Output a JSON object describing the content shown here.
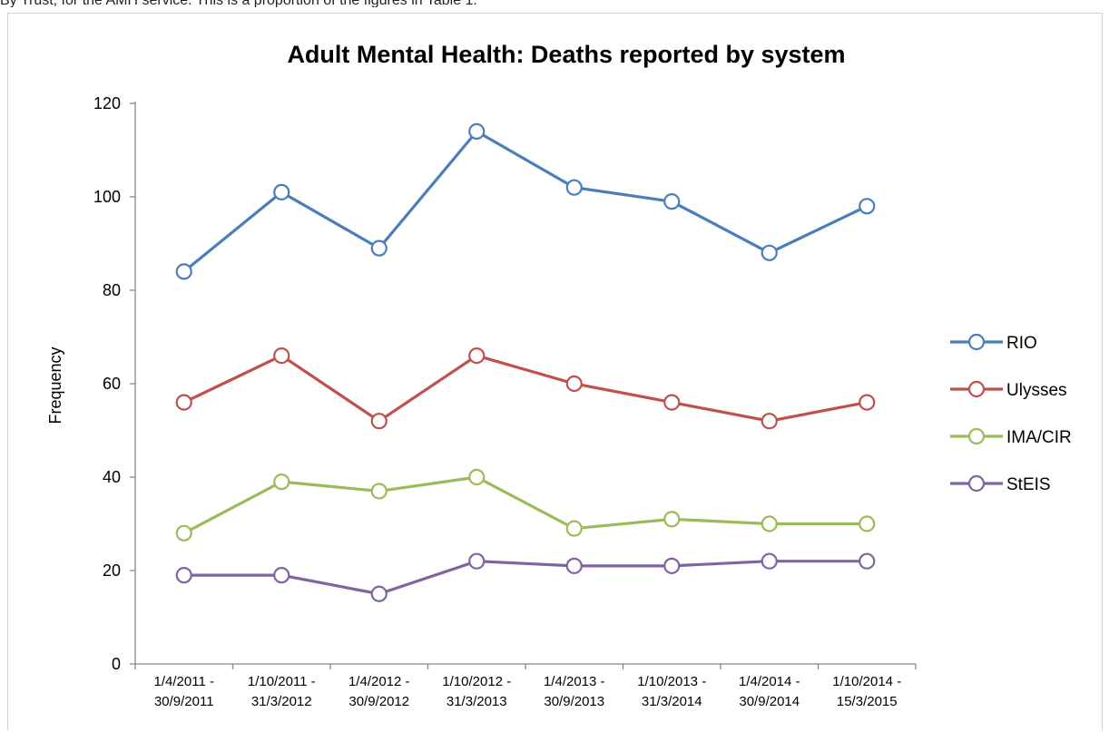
{
  "page": {
    "top_snippet": "By Trust, for the AMH service. This is a proportion of the figures in Table 1."
  },
  "chart_data": {
    "type": "line",
    "title": "Adult Mental Health: Deaths reported by system",
    "xlabel": "",
    "ylabel": "Frequency",
    "ylim": [
      0,
      120
    ],
    "yticks": [
      0,
      20,
      40,
      60,
      80,
      100,
      120
    ],
    "grid": false,
    "legend_position": "right",
    "categories": [
      [
        "1/4/2011 -",
        "30/9/2011"
      ],
      [
        "1/10/2011 -",
        "31/3/2012"
      ],
      [
        "1/4/2012 -",
        "30/9/2012"
      ],
      [
        "1/10/2012 -",
        "31/3/2013"
      ],
      [
        "1/4/2013 -",
        "30/9/2013"
      ],
      [
        "1/10/2013 -",
        "31/3/2014"
      ],
      [
        "1/4/2014 -",
        "30/9/2014"
      ],
      [
        "1/10/2014 -",
        "15/3/2015"
      ]
    ],
    "series": [
      {
        "name": "RIO",
        "color": "#4a7ebb",
        "values": [
          84,
          101,
          89,
          114,
          102,
          99,
          88,
          98
        ]
      },
      {
        "name": "Ulysses",
        "color": "#c0504d",
        "values": [
          56,
          66,
          52,
          66,
          60,
          56,
          52,
          56
        ]
      },
      {
        "name": "IMA/CIR",
        "color": "#9bbb59",
        "values": [
          28,
          39,
          37,
          40,
          29,
          31,
          30,
          30
        ]
      },
      {
        "name": "StEIS",
        "color": "#8064a2",
        "values": [
          19,
          19,
          15,
          22,
          21,
          21,
          22,
          22
        ]
      }
    ]
  }
}
